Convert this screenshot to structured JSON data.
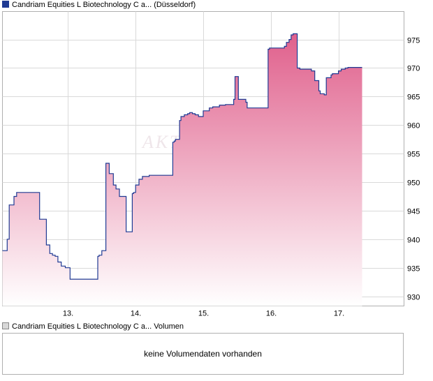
{
  "price_panel": {
    "legend_label": "Candriam Equities L Biotechnology C a... (Düsseldorf)",
    "watermark": "AKTI"
  },
  "volume_panel": {
    "legend_label": "Candriam Equities L Biotechnology C a... Volumen",
    "empty_message": "keine Volumendaten vorhanden"
  },
  "colors": {
    "line": "#1f3a93",
    "fill_top": "#e0608c",
    "fill_bottom": "#ffffff",
    "grid": "#d9d9d9",
    "border": "#b0b0b0"
  },
  "chart_data": {
    "type": "area",
    "title": "",
    "xlabel": "",
    "ylabel": "",
    "x_ticks": [
      "13.",
      "14.",
      "15.",
      "16.",
      "17."
    ],
    "x_tick_days": [
      13,
      14,
      15,
      16,
      17
    ],
    "xlim": [
      12.03,
      17.97
    ],
    "y_ticks": [
      930,
      935,
      940,
      945,
      950,
      955,
      960,
      965,
      970,
      975
    ],
    "ylim": [
      928.3,
      979.9
    ],
    "y_axis_position": "right",
    "grid": true,
    "series": [
      {
        "step": true,
        "x": [
          12.03,
          12.1,
          12.13,
          12.2,
          12.24,
          12.58,
          12.68,
          12.73,
          12.77,
          12.81,
          12.85,
          12.9,
          12.96,
          13.03,
          13.44,
          13.46,
          13.5,
          13.56,
          13.61,
          13.67,
          13.71,
          13.76,
          13.82,
          13.86,
          13.89,
          13.95,
          13.97,
          14.0,
          14.05,
          14.1,
          14.16,
          14.2,
          14.22,
          14.55,
          14.57,
          14.59,
          14.65,
          14.67,
          14.72,
          14.77,
          14.8,
          14.84,
          14.88,
          14.93,
          14.95,
          15.0,
          15.09,
          15.14,
          15.16,
          15.24,
          15.26,
          15.33,
          15.37,
          15.45,
          15.47,
          15.52,
          15.63,
          15.65,
          15.71,
          15.73,
          15.78,
          15.81,
          15.96,
          15.98,
          16.2,
          16.23,
          16.27,
          16.3,
          16.3,
          16.33,
          16.39,
          16.43,
          16.5,
          16.52,
          16.57,
          16.6,
          16.65,
          16.71,
          16.73,
          16.79,
          16.82,
          16.89,
          16.91,
          17.0,
          17.04,
          17.1,
          17.14,
          17.2,
          17.22,
          17.28,
          17.33,
          17.35
        ],
        "values": [
          938.0,
          940.0,
          946.0,
          947.5,
          948.2,
          943.5,
          939.0,
          937.5,
          937.2,
          937.0,
          936.0,
          935.3,
          935.0,
          933.0,
          937.0,
          937.2,
          938.0,
          953.3,
          951.5,
          949.5,
          948.8,
          947.5,
          947.5,
          941.3,
          941.3,
          948.0,
          948.2,
          949.5,
          950.5,
          951.0,
          951.0,
          951.2,
          951.2,
          957.0,
          957.2,
          957.5,
          960.8,
          961.5,
          961.8,
          962.0,
          962.2,
          962.0,
          961.8,
          961.5,
          961.5,
          962.5,
          963.0,
          963.2,
          963.2,
          963.5,
          963.5,
          963.6,
          963.6,
          964.5,
          968.5,
          964.5,
          964.0,
          963.0,
          963.0,
          963.0,
          963.0,
          963.0,
          973.3,
          973.5,
          973.8,
          974.5,
          975.0,
          975.5,
          975.8,
          976.0,
          970.0,
          969.8,
          969.8,
          969.8,
          969.8,
          969.5,
          967.8,
          966.0,
          965.5,
          965.3,
          968.3,
          968.8,
          969.0,
          969.5,
          969.8,
          970.0,
          970.1,
          970.1,
          970.1,
          970.1,
          970.1,
          970.1
        ]
      }
    ]
  }
}
